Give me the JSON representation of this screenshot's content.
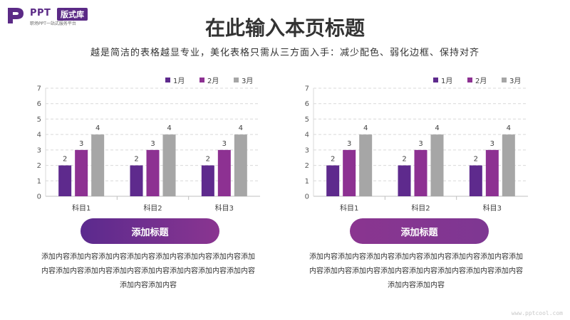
{
  "logo": {
    "title": "PPT",
    "badge": "版式库",
    "tagline": "职场PPT一站式服务平台",
    "colors": {
      "brand": "#5b2a86"
    }
  },
  "header": {
    "title": "在此输入本页标题",
    "subtitle": "越是简洁的表格越显专业，美化表格只需从三方面入手：减少配色、弱化边框、保持对齐"
  },
  "panels": [
    {
      "button_label": "添加标题",
      "body_text": "添加内容添加内容添加内容添加内容添加内容添加内容添加内容添加内容添加内容添加内容添加内容添加内容添加内容添加内容添加内容添加内容添加内容"
    },
    {
      "button_label": "添加标题",
      "body_text": "添加内容添加内容添加内容添加内容添加内容添加内容添加内容添加内容添加内容添加内容添加内容添加内容添加内容添加内容添加内容添加内容添加内容"
    }
  ],
  "chart_data": [
    {
      "type": "bar",
      "categories": [
        "科目1",
        "科目2",
        "科目3"
      ],
      "series": [
        {
          "name": "1月",
          "values": [
            2,
            2,
            2
          ],
          "color": "#5e2a8d"
        },
        {
          "name": "2月",
          "values": [
            3,
            3,
            3
          ],
          "color": "#8d3192"
        },
        {
          "name": "3月",
          "values": [
            4,
            4,
            4
          ],
          "color": "#a6a6a6"
        }
      ],
      "ylim": [
        0,
        7
      ],
      "yticks": [
        0,
        1,
        2,
        3,
        4,
        5,
        6,
        7
      ],
      "grid": true,
      "legend": "top-right",
      "data_labels": true
    },
    {
      "type": "bar",
      "categories": [
        "科目1",
        "科目2",
        "科目3"
      ],
      "series": [
        {
          "name": "1月",
          "values": [
            2,
            2,
            2
          ],
          "color": "#5e2a8d"
        },
        {
          "name": "2月",
          "values": [
            3,
            3,
            3
          ],
          "color": "#8d3192"
        },
        {
          "name": "3月",
          "values": [
            4,
            4,
            4
          ],
          "color": "#a6a6a6"
        }
      ],
      "ylim": [
        0,
        7
      ],
      "yticks": [
        0,
        1,
        2,
        3,
        4,
        5,
        6,
        7
      ],
      "grid": true,
      "legend": "top-right",
      "data_labels": true
    }
  ],
  "footer": {
    "watermark": "www.pptcool.com"
  }
}
